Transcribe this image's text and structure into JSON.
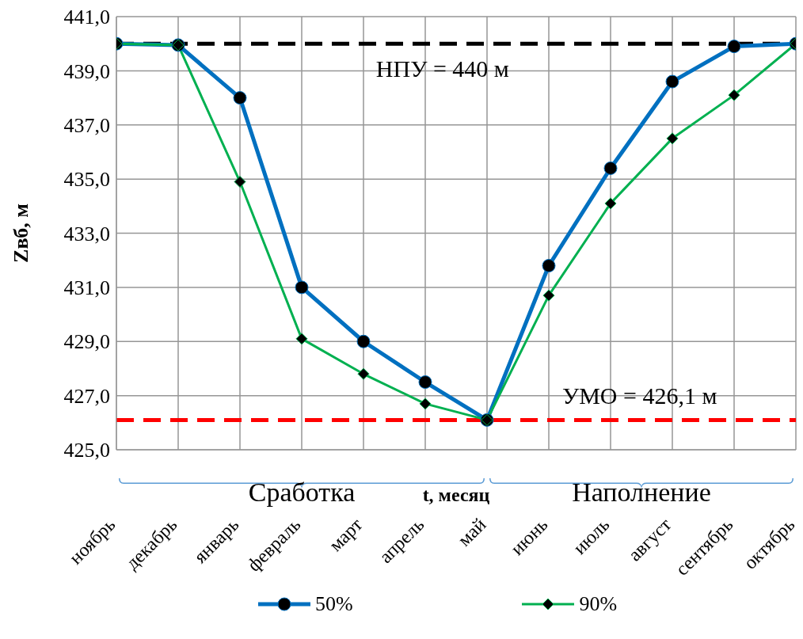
{
  "chart_data": {
    "type": "line",
    "ylabel": "Zвб, м",
    "xlabel": "t, месяц",
    "categories": [
      "ноябрь",
      "декабрь",
      "январь",
      "февраль",
      "март",
      "апрель",
      "май",
      "июнь",
      "июль",
      "август",
      "сентябрь",
      "октябрь"
    ],
    "series": [
      {
        "name": "50%",
        "color": "#0070c0",
        "marker": "circle",
        "values": [
          440,
          439.95,
          438,
          431,
          429,
          427.5,
          426.1,
          431.8,
          435.4,
          438.6,
          439.9,
          440
        ]
      },
      {
        "name": "90%",
        "color": "#00b050",
        "marker": "diamond",
        "values": [
          440,
          439.95,
          434.9,
          429.1,
          427.8,
          426.7,
          426.1,
          430.7,
          434.1,
          436.5,
          438.1,
          440
        ]
      }
    ],
    "ylim": [
      425,
      441
    ],
    "yticks": [
      {
        "value": 425,
        "label": "425,0"
      },
      {
        "value": 427,
        "label": "427,0"
      },
      {
        "value": 429,
        "label": "429,0"
      },
      {
        "value": 431,
        "label": "431,0"
      },
      {
        "value": 433,
        "label": "433,0"
      },
      {
        "value": 435,
        "label": "435,0"
      },
      {
        "value": 437,
        "label": "437,0"
      },
      {
        "value": 439,
        "label": "439,0"
      },
      {
        "value": 441,
        "label": "441,0"
      }
    ],
    "grid": true,
    "legend": "bottom",
    "line_style": "solid",
    "ref_lines": [
      {
        "axis": "y",
        "value": 440,
        "label": "НПУ = 440 м",
        "color": "#000000",
        "line_style": "dashed"
      },
      {
        "axis": "y",
        "value": 426.1,
        "label": "УМО = 426,1 м",
        "color": "#ff0000",
        "line_style": "dashed"
      }
    ],
    "annotations": [
      "Сработка",
      "Наполнение"
    ]
  }
}
